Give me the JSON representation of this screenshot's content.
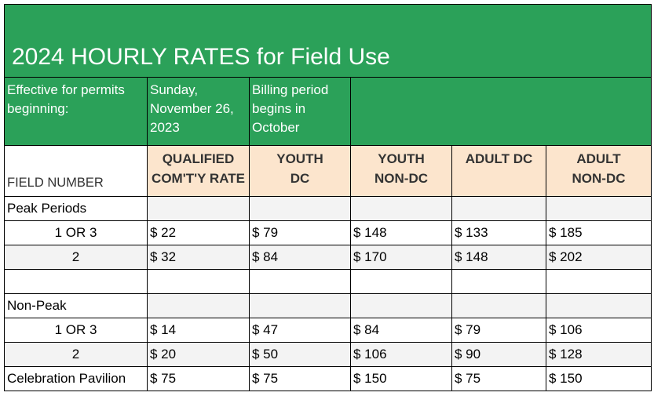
{
  "title": "2024 HOURLY RATES for Field Use",
  "info": {
    "effective_label": "Effective for permits beginning:",
    "effective_date": "Sunday, November 26, 2023",
    "billing_note": "Billing period begins in October"
  },
  "header": {
    "field_number": "FIELD NUMBER",
    "col1": "QUALIFIED COM'T'Y RATE",
    "col2_line1": "YOUTH",
    "col2_line2": "DC",
    "col3_line1": "YOUTH",
    "col3_line2": "NON-DC",
    "col4_line1": "ADULT DC",
    "col5_line1": "ADULT",
    "col5_line2": "NON-DC"
  },
  "sections": {
    "peak": "Peak Periods",
    "nonpeak": "Non-Peak"
  },
  "rows": {
    "peak1": [
      "1 OR 3",
      "$ 22",
      "$ 79",
      "$ 148",
      "$ 133",
      "$ 185"
    ],
    "peak2": [
      "2",
      "$ 32",
      "$ 84",
      "$ 170",
      "$ 148",
      "$ 202"
    ],
    "non1": [
      "1 OR 3",
      "$ 14",
      "$ 47",
      "$ 84",
      "$ 79",
      "$ 106"
    ],
    "non2": [
      "2",
      "$ 20",
      "$ 50",
      "$ 106",
      "$ 90",
      "$ 128"
    ],
    "pavilion": [
      "Celebration Pavilion",
      "$ 75",
      "$ 75",
      "$ 150",
      "$ 75",
      "$ 150"
    ]
  },
  "colors": {
    "title_bg": "#2ba159",
    "header_bg": "#fce5cd",
    "band_bg": "#f3f3f3"
  }
}
